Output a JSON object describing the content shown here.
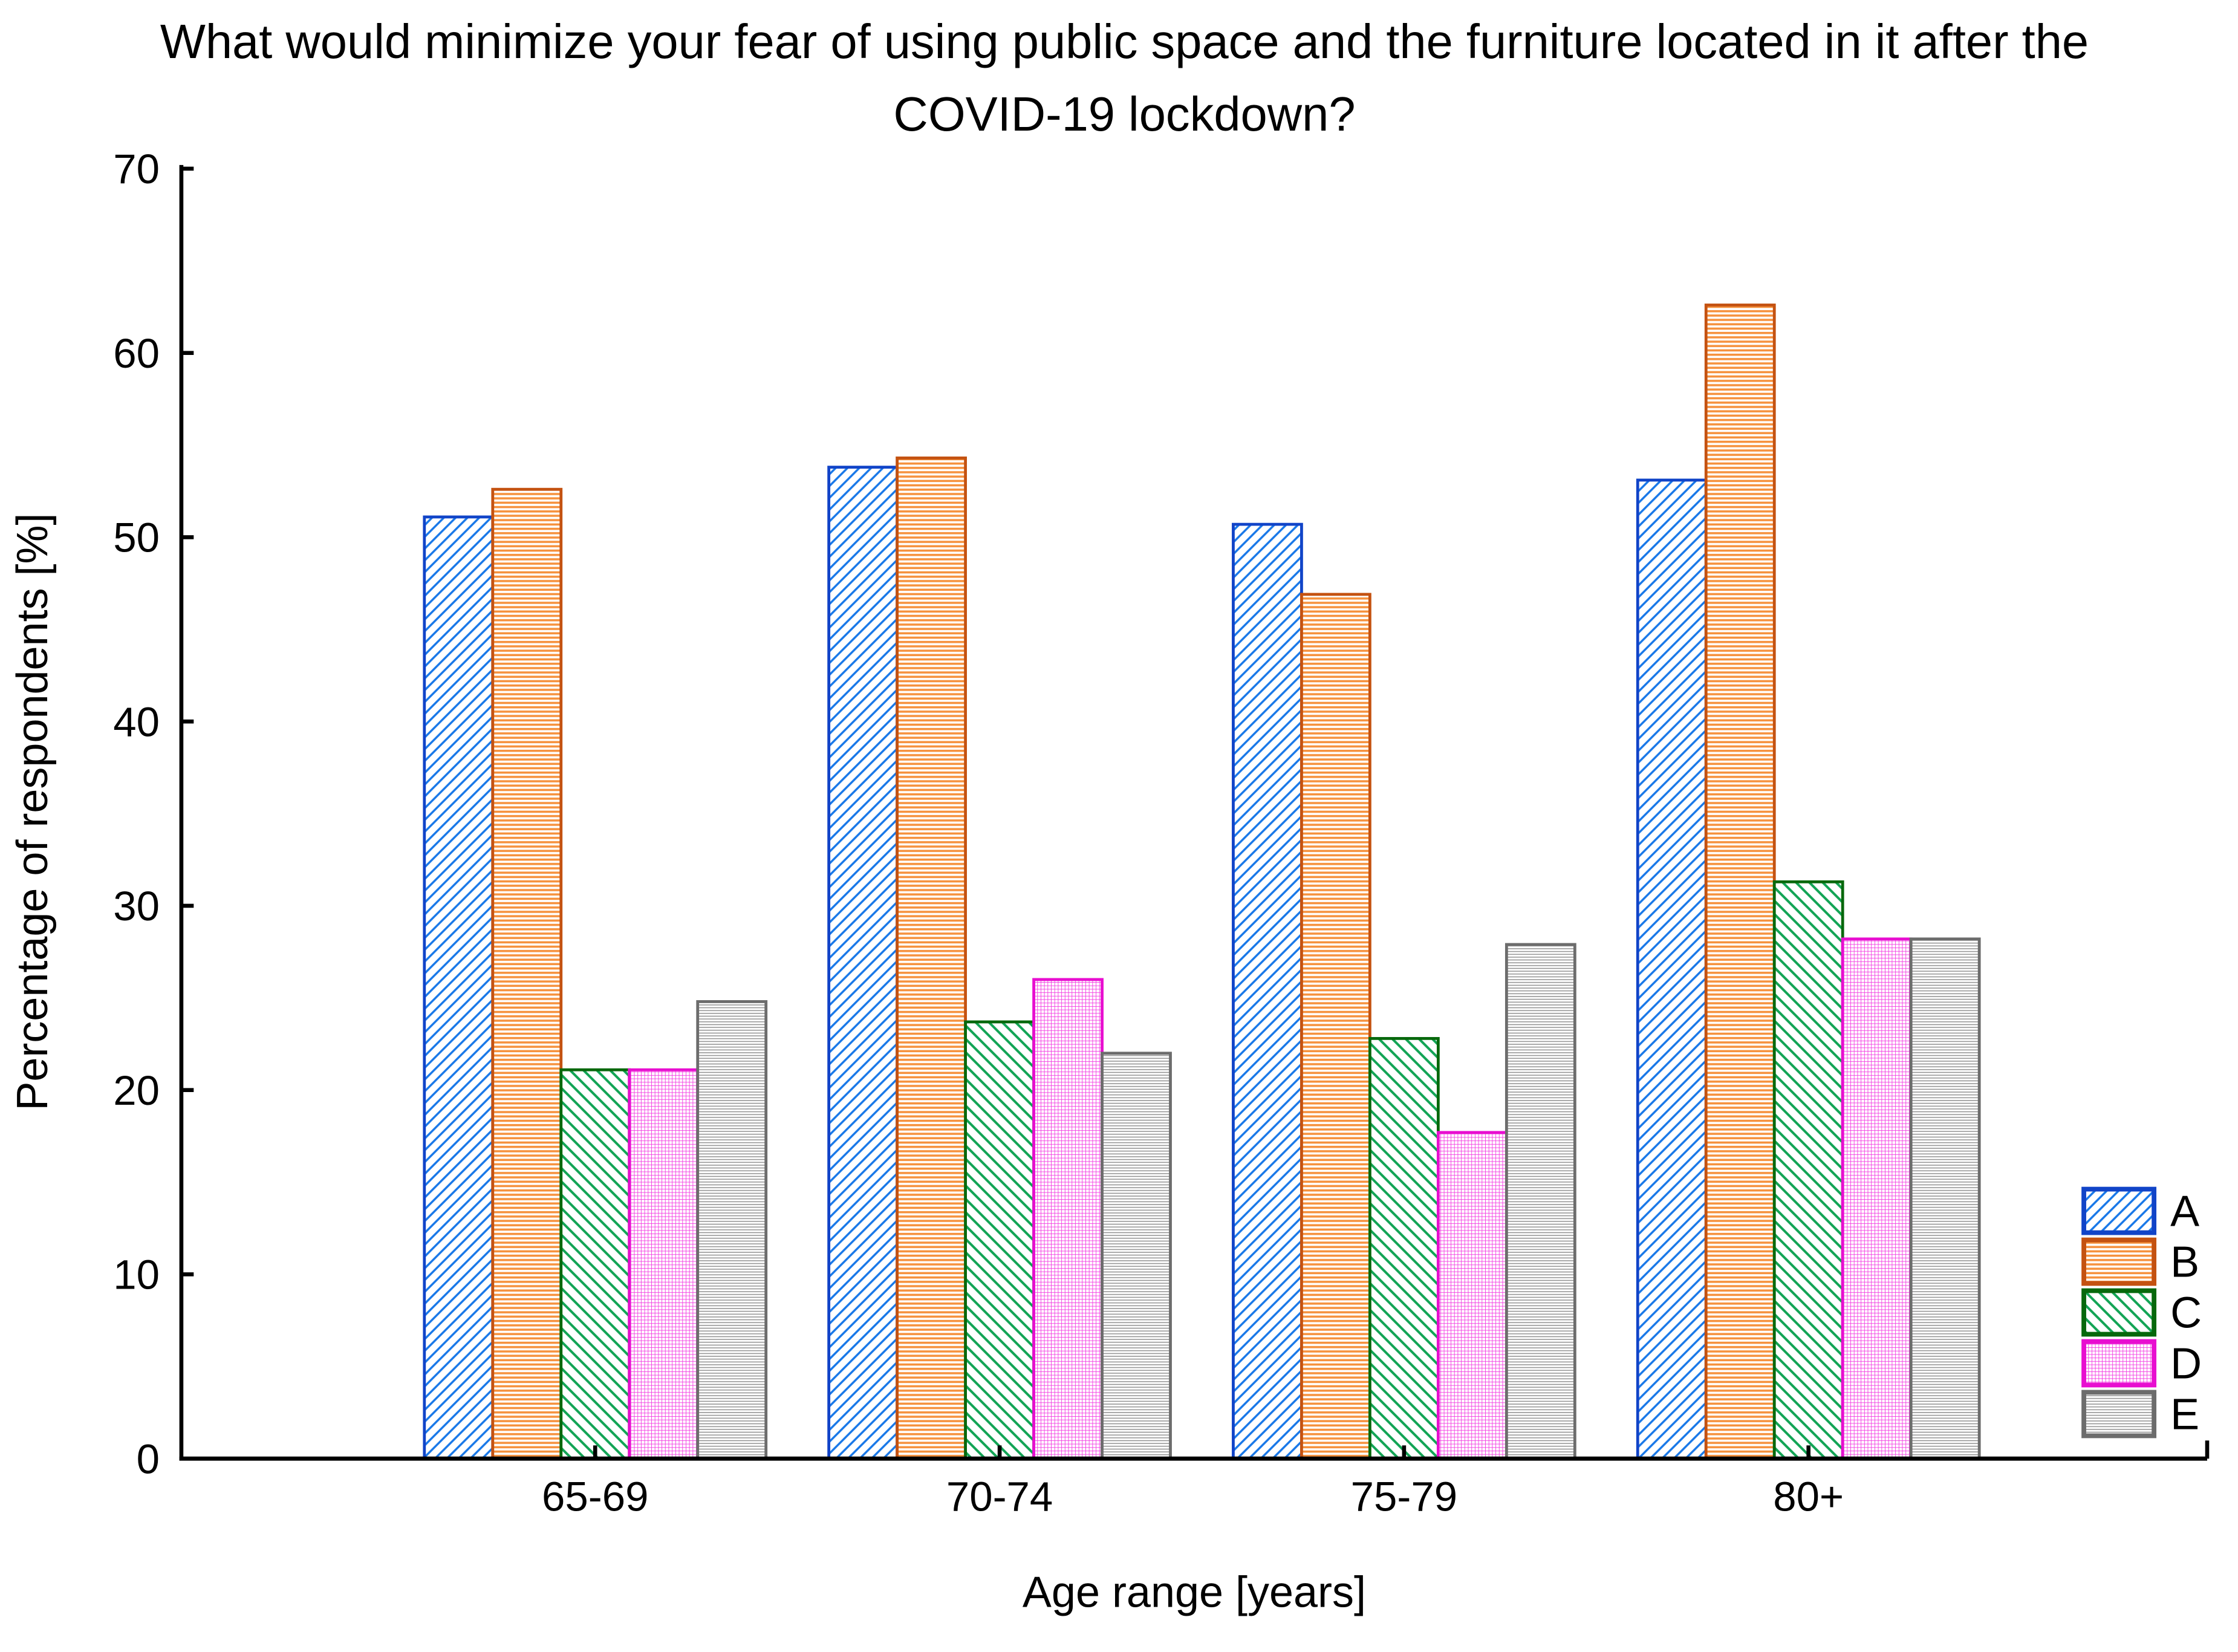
{
  "figure": {
    "background": "#FFFFFF",
    "text_color": "#000000",
    "axis_color": "#000000"
  },
  "chart_data": {
    "type": "bar",
    "title": "What would minimize your fear of using public space and the furniture located in it after the COVID-19 lockdown?",
    "title_lines": [
      "What would minimize your fear of using public space and the furniture located in it after the",
      "COVID-19 lockdown?"
    ],
    "xlabel": "Age range [years]",
    "ylabel": "Percentage of respondents [%]",
    "ylim": [
      0,
      70
    ],
    "yticks": [
      0,
      10,
      20,
      30,
      40,
      50,
      60,
      70
    ],
    "categories": [
      "65-69",
      "70-74",
      "75-79",
      "80+"
    ],
    "series": [
      {
        "name": "A",
        "values": [
          51.1,
          53.8,
          50.7,
          53.1
        ],
        "hatch": "diagonal-up",
        "line_color": "#1777E8",
        "border_color": "#1144C8"
      },
      {
        "name": "B",
        "values": [
          52.6,
          54.3,
          46.9,
          62.6
        ],
        "hatch": "horizontal",
        "line_color": "#F6923E",
        "border_color": "#C45211"
      },
      {
        "name": "C",
        "values": [
          21.1,
          23.7,
          22.8,
          31.3
        ],
        "hatch": "diagonal-down",
        "line_color": "#12A455",
        "border_color": "#07680C"
      },
      {
        "name": "D",
        "values": [
          21.1,
          26.0,
          17.7,
          28.2
        ],
        "hatch": "grid",
        "line_color": "#F33CE2",
        "border_color": "#E80ED0"
      },
      {
        "name": "E",
        "values": [
          24.8,
          22.0,
          27.9,
          28.2
        ],
        "hatch": "horizontal-fine",
        "line_color": "#909090",
        "border_color": "#6C6C6C"
      }
    ],
    "legend": {
      "position": "right-bottom",
      "labels": [
        "A",
        "B",
        "C",
        "D",
        "E"
      ]
    },
    "grid": false
  }
}
